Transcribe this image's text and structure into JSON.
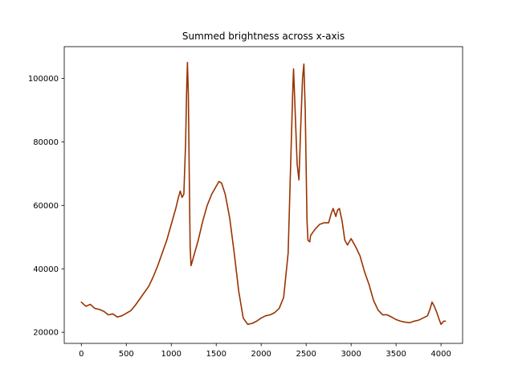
{
  "chart_data": {
    "type": "line",
    "title": "Summed brightness across x-axis",
    "xlabel": "",
    "ylabel": "",
    "xlim": [
      -190,
      4240
    ],
    "ylim": [
      16500,
      110000
    ],
    "xticks": [
      0,
      500,
      1000,
      1500,
      2000,
      2500,
      3000,
      3500,
      4000
    ],
    "yticks": [
      20000,
      40000,
      60000,
      80000,
      100000
    ],
    "grid": false,
    "line_color": "#993300",
    "series": [
      {
        "x": [
          0,
          50,
          100,
          150,
          200,
          250,
          300,
          350,
          400,
          450,
          500,
          550,
          600,
          650,
          700,
          750,
          800,
          850,
          900,
          950,
          1000,
          1050,
          1080,
          1100,
          1120,
          1140,
          1160,
          1170,
          1180,
          1190,
          1200,
          1210,
          1220,
          1230,
          1250,
          1300,
          1350,
          1400,
          1450,
          1500,
          1530,
          1560,
          1600,
          1650,
          1700,
          1750,
          1800,
          1850,
          1900,
          1950,
          2000,
          2050,
          2100,
          2150,
          2200,
          2250,
          2300,
          2330,
          2350,
          2360,
          2380,
          2400,
          2420,
          2440,
          2460,
          2475,
          2490,
          2500,
          2510,
          2520,
          2540,
          2550,
          2600,
          2650,
          2700,
          2750,
          2780,
          2800,
          2830,
          2850,
          2870,
          2900,
          2930,
          2960,
          3000,
          3030,
          3050,
          3100,
          3150,
          3200,
          3250,
          3300,
          3350,
          3400,
          3450,
          3500,
          3550,
          3600,
          3650,
          3700,
          3750,
          3800,
          3850,
          3880,
          3900,
          3920,
          3950,
          3980,
          4000,
          4030,
          4050
        ],
        "y": [
          29500,
          28200,
          28800,
          27500,
          27200,
          26600,
          25500,
          25800,
          24800,
          25200,
          26000,
          26800,
          28500,
          30500,
          32500,
          34500,
          37500,
          41000,
          45000,
          49000,
          54000,
          59000,
          62500,
          64500,
          62500,
          63500,
          80000,
          95000,
          105000,
          95000,
          70000,
          47000,
          41000,
          42000,
          44000,
          49000,
          55000,
          60000,
          63500,
          66000,
          67500,
          67000,
          63500,
          56000,
          45000,
          33000,
          24500,
          22500,
          22800,
          23500,
          24500,
          25200,
          25500,
          26200,
          27500,
          31000,
          45000,
          75000,
          95000,
          103000,
          88000,
          73000,
          68000,
          85000,
          100000,
          104500,
          90000,
          72000,
          55000,
          49000,
          48500,
          50500,
          52500,
          54000,
          54500,
          54500,
          57500,
          59000,
          56500,
          58500,
          59000,
          55000,
          49000,
          47500,
          49500,
          48000,
          47000,
          44000,
          39000,
          35000,
          30000,
          27000,
          25500,
          25500,
          24800,
          24000,
          23500,
          23200,
          23000,
          23500,
          23800,
          24500,
          25200,
          27500,
          29500,
          28500,
          26500,
          24000,
          22500,
          23500,
          23500
        ]
      }
    ]
  }
}
